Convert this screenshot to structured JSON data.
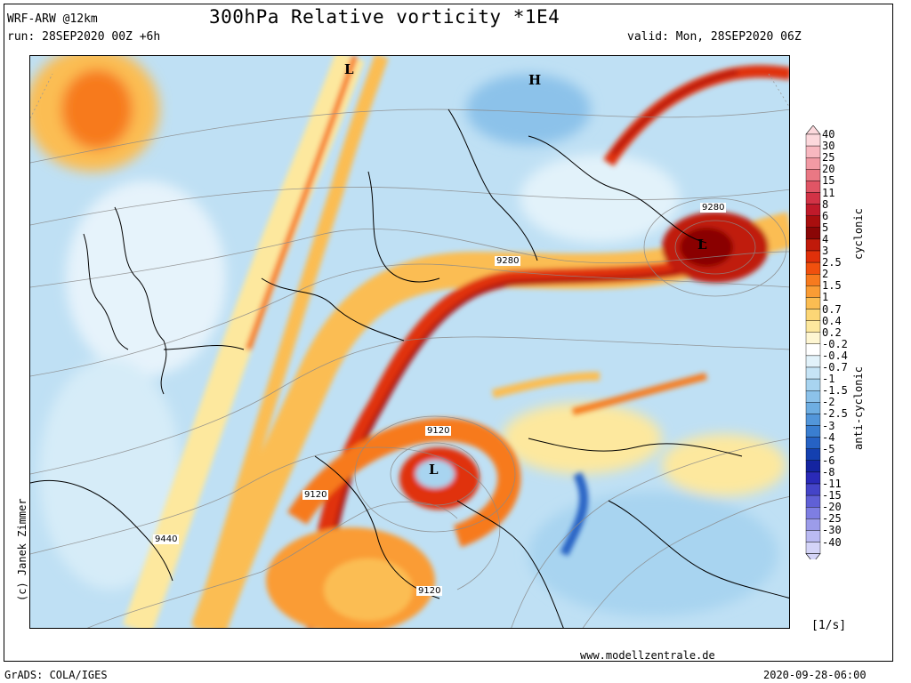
{
  "header": {
    "model": "WRF-ARW @12km",
    "title": "300hPa Relative vorticity *1E4",
    "run": "run: 28SEP2020 00Z +6h",
    "valid": "valid: Mon, 28SEP2020 06Z"
  },
  "credit": "(c) Janek Zimmer",
  "footer": {
    "website": "www.modellzentrale.de",
    "software": "GrADS: COLA/IGES",
    "timestamp": "2020-09-28-06:00"
  },
  "colorbar": {
    "unit": "[1/s]",
    "cyclonic_label": "cyclonic",
    "anticyclonic_label": "anti-cyclonic",
    "levels": [
      {
        "label": "40",
        "color": "#fcd8dc"
      },
      {
        "label": "30",
        "color": "#f8b8c0"
      },
      {
        "label": "25",
        "color": "#f29aa4"
      },
      {
        "label": "20",
        "color": "#ea7884"
      },
      {
        "label": "15",
        "color": "#e05565"
      },
      {
        "label": "11",
        "color": "#d23346"
      },
      {
        "label": "8",
        "color": "#c01a2a"
      },
      {
        "label": "6",
        "color": "#a80e0e"
      },
      {
        "label": "5",
        "color": "#8a0606"
      },
      {
        "label": "4",
        "color": "#c01a0a"
      },
      {
        "label": "3",
        "color": "#e0300a"
      },
      {
        "label": "2.5",
        "color": "#f0500e"
      },
      {
        "label": "2",
        "color": "#f77a1e"
      },
      {
        "label": "1.5",
        "color": "#fa9c34"
      },
      {
        "label": "1",
        "color": "#fbbd52"
      },
      {
        "label": "0.7",
        "color": "#fcd676"
      },
      {
        "label": "0.4",
        "color": "#fde89e"
      },
      {
        "label": "0.2",
        "color": "#fef6d2"
      },
      {
        "label": "-0.2",
        "color": "#ffffff"
      },
      {
        "label": "-0.4",
        "color": "#e2f2fa"
      },
      {
        "label": "-0.7",
        "color": "#c6e4f6"
      },
      {
        "label": "-1",
        "color": "#a8d4f0"
      },
      {
        "label": "-1.5",
        "color": "#8cc2ea"
      },
      {
        "label": "-2",
        "color": "#6eaee2"
      },
      {
        "label": "-2.5",
        "color": "#5296da"
      },
      {
        "label": "-3",
        "color": "#3a7ed0"
      },
      {
        "label": "-4",
        "color": "#2662c4"
      },
      {
        "label": "-5",
        "color": "#1440b0"
      },
      {
        "label": "-6",
        "color": "#1424a0"
      },
      {
        "label": "-8",
        "color": "#2a2ab8"
      },
      {
        "label": "-11",
        "color": "#4444c8"
      },
      {
        "label": "-15",
        "color": "#6060d6"
      },
      {
        "label": "-20",
        "color": "#7e7ee2"
      },
      {
        "label": "-25",
        "color": "#9c9cea"
      },
      {
        "label": "-30",
        "color": "#babaf2"
      },
      {
        "label": "-40",
        "color": "#d4d4f8"
      }
    ]
  },
  "map": {
    "pressure_systems": [
      {
        "id": "low-north",
        "label": "L"
      },
      {
        "id": "high-scandinavia",
        "label": "H"
      },
      {
        "id": "low-baltic",
        "label": "L"
      },
      {
        "id": "low-alps",
        "label": "L"
      }
    ],
    "contour_labels": [
      "9280",
      "9280",
      "9120",
      "9120",
      "9440",
      "9120"
    ]
  }
}
